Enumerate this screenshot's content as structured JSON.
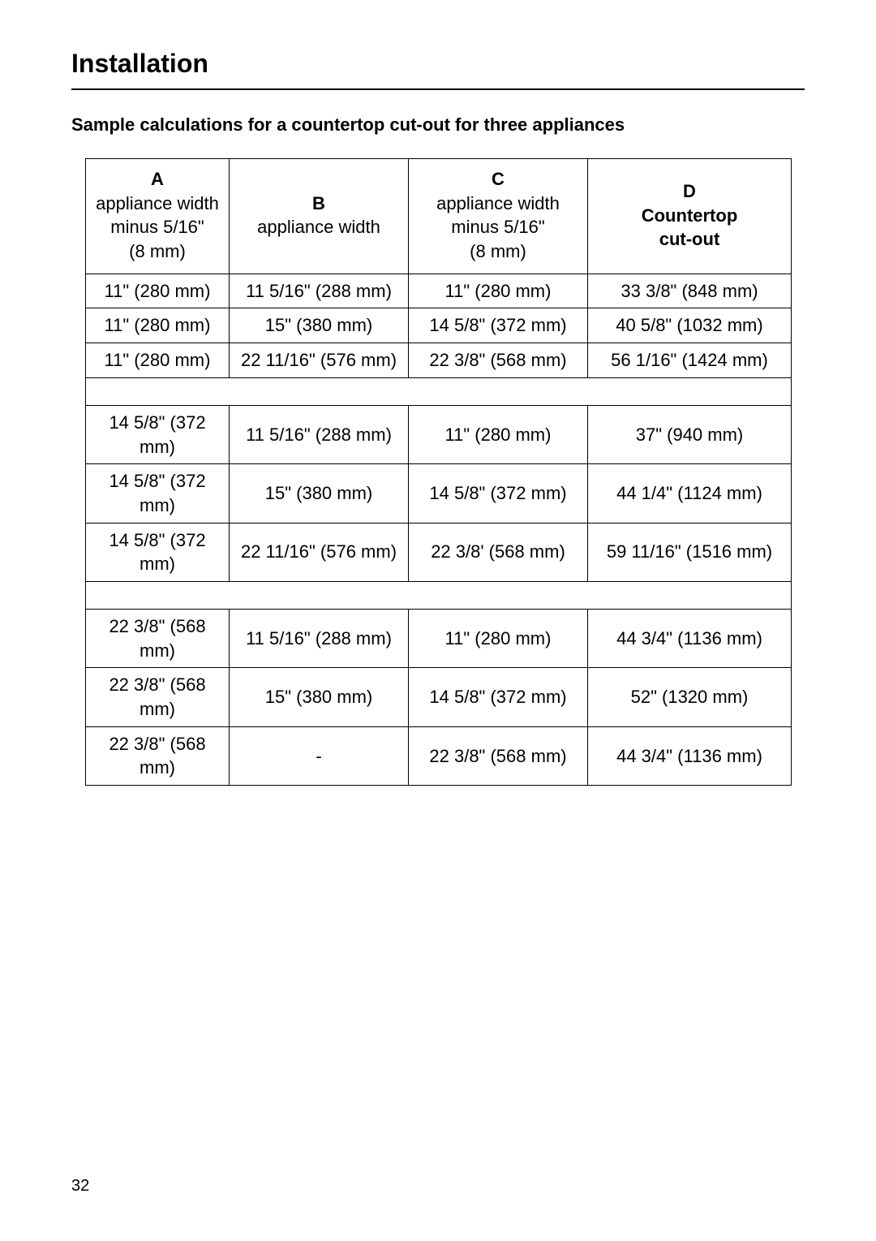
{
  "page": {
    "title": "Installation",
    "subtitle": "Sample calculations for a countertop cut-out for three appliances",
    "pageNumber": "32"
  },
  "table": {
    "columns": [
      {
        "letter": "A",
        "desc_lines": [
          "appliance width",
          "minus 5/16\"",
          "(8 mm)"
        ],
        "bold_desc": false
      },
      {
        "letter": "B",
        "desc_lines": [
          "appliance width"
        ],
        "bold_desc": false
      },
      {
        "letter": "C",
        "desc_lines": [
          "appliance width",
          "minus 5/16\"",
          "(8 mm)"
        ],
        "bold_desc": false
      },
      {
        "letter": "D",
        "desc_lines": [
          "Countertop",
          "cut-out"
        ],
        "bold_desc": true
      }
    ],
    "groups": [
      [
        [
          "11\" (280 mm)",
          "11 5/16\" (288 mm)",
          "11\" (280 mm)",
          "33 3/8\" (848 mm)"
        ],
        [
          "11\" (280 mm)",
          "15\" (380 mm)",
          "14 5/8\" (372 mm)",
          "40 5/8\" (1032 mm)"
        ],
        [
          "11\" (280 mm)",
          "22 11/16\" (576 mm)",
          "22 3/8\" (568 mm)",
          "56 1/16\" (1424 mm)"
        ]
      ],
      [
        [
          "14 5/8\" (372 mm)",
          "11 5/16\" (288 mm)",
          "11\" (280 mm)",
          "37\" (940 mm)"
        ],
        [
          "14 5/8\" (372 mm)",
          "15\" (380 mm)",
          "14 5/8\" (372 mm)",
          "44 1/4\" (1124 mm)"
        ],
        [
          "14 5/8\" (372 mm)",
          "22 11/16\" (576 mm)",
          "22 3/8' (568 mm)",
          "59 11/16\" (1516 mm)"
        ]
      ],
      [
        [
          "22 3/8\" (568 mm)",
          "11 5/16\" (288 mm)",
          "11\" (280 mm)",
          "44 3/4\" (1136 mm)"
        ],
        [
          "22 3/8\" (568 mm)",
          "15\" (380 mm)",
          "14 5/8\" (372 mm)",
          "52\" (1320 mm)"
        ],
        [
          "22 3/8\" (568 mm)",
          "-",
          "22 3/8\" (568 mm)",
          "44 3/4\" (1136 mm)"
        ]
      ]
    ]
  }
}
